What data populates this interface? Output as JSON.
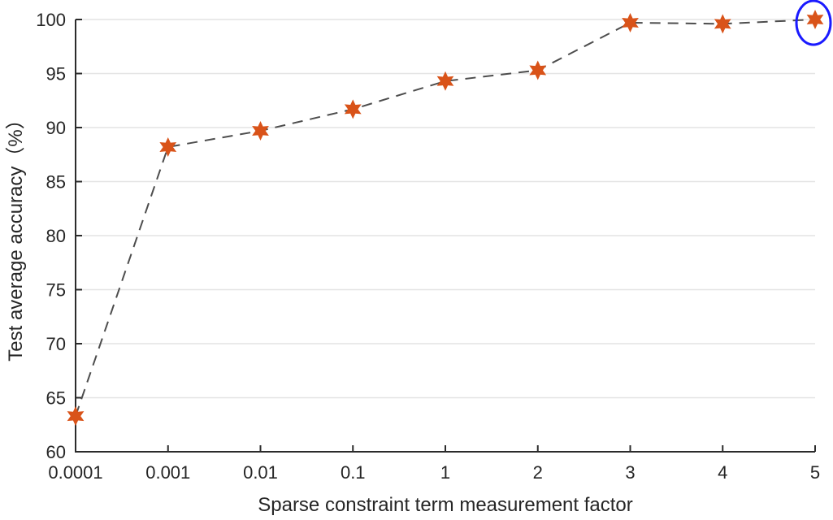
{
  "chart_data": {
    "type": "line",
    "title": "",
    "categories": [
      "0.0001",
      "0.001",
      "0.01",
      "0.1",
      "1",
      "2",
      "3",
      "4",
      "5"
    ],
    "series": [
      {
        "name": "Test average accuracy",
        "values": [
          63.3,
          88.2,
          89.7,
          91.7,
          94.3,
          95.3,
          99.7,
          99.6,
          100
        ]
      }
    ],
    "xlabel": "Sparse constraint term measurement factor",
    "ylabel": "Test average accuracy（%）",
    "ylim": [
      60,
      100
    ],
    "yticks": [
      60,
      65,
      70,
      75,
      80,
      85,
      90,
      95,
      100
    ],
    "grid": "horizontal-only",
    "legend_position": "none",
    "line_style": "dashed",
    "marker": "hexagram-star",
    "highlight": {
      "type": "ellipse",
      "category": "5",
      "point_index": 8,
      "note": "best value circled"
    },
    "colors": {
      "marker": "#d95319",
      "line": "#4d4d4d",
      "grid": "#e4e4e4",
      "axis": "#2b2b2b",
      "text": "#262626",
      "highlight": "#1a1aff",
      "background": "#ffffff"
    }
  }
}
